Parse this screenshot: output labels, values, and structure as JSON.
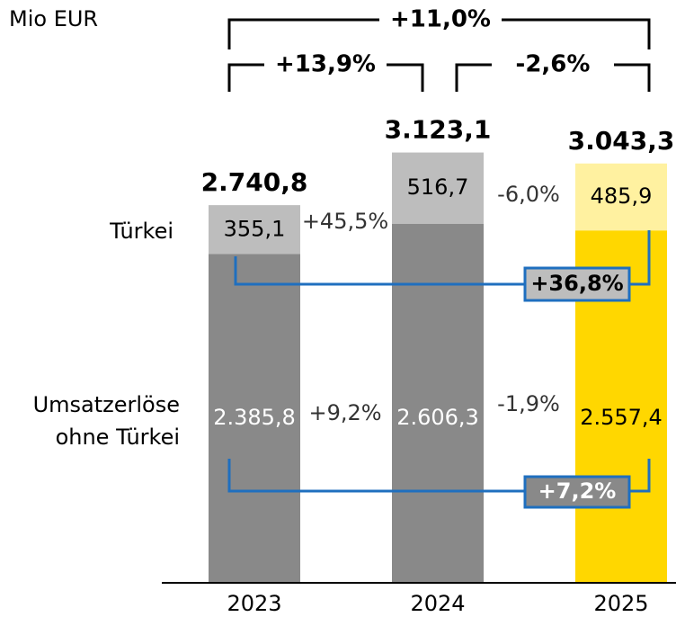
{
  "chart_data": {
    "type": "stacked_bar",
    "unit": "Mio EUR",
    "categories": [
      "2023",
      "2024",
      "2025"
    ],
    "series": [
      {
        "name": "Umsatzerlöse ohne Türkei",
        "colors": [
          "#898989",
          "#898989",
          "#ffd700"
        ],
        "values": [
          2385.8,
          2606.3,
          2557.4
        ],
        "value_labels": [
          "2.385,8",
          "2.606,3",
          "2.557,4"
        ]
      },
      {
        "name": "Türkei",
        "colors": [
          "#bdbdbd",
          "#bdbdbd",
          "#fff1a0"
        ],
        "values": [
          355.1,
          516.7,
          485.9
        ],
        "value_labels": [
          "355,1",
          "516,7",
          "485,9"
        ]
      }
    ],
    "totals": [
      2740.8,
      3123.1,
      3043.3
    ],
    "total_labels": [
      "2.740,8",
      "3.123,1",
      "3.043,3"
    ],
    "annotations": [
      {
        "text": "+11,0%"
      },
      {
        "text": "+13,9%"
      },
      {
        "text": "-2,6%"
      },
      {
        "text": "+45,5%"
      },
      {
        "text": "-6,0%"
      },
      {
        "text": "+9,2%"
      },
      {
        "text": "-1,9%"
      },
      {
        "text": "+36,8%"
      },
      {
        "text": "+7,2%"
      }
    ]
  }
}
